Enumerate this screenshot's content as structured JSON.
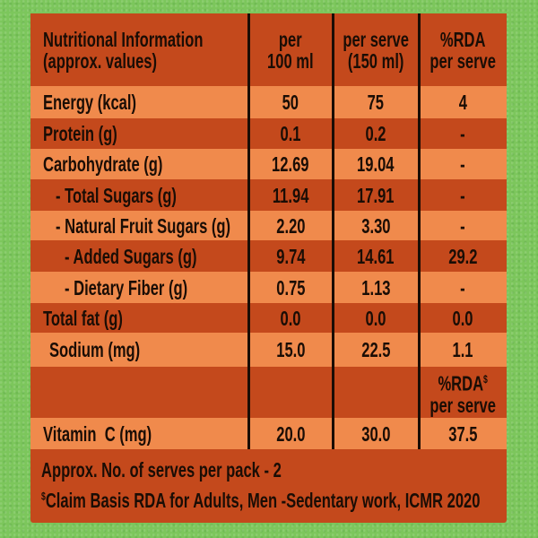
{
  "header": {
    "col1": [
      "Nutritional Information",
      "(approx. values)"
    ],
    "col2": [
      "per",
      "100 ml"
    ],
    "col3": [
      "per serve",
      "(150 ml)"
    ],
    "col4": [
      "%RDA",
      "per serve"
    ]
  },
  "rows": [
    {
      "label": "Energy (kcal)",
      "per100": "50",
      "perServe": "75",
      "rda": "4"
    },
    {
      "label": "Protein (g)",
      "per100": "0.1",
      "perServe": "0.2",
      "rda": "-"
    },
    {
      "label": "Carbohydrate (g)",
      "per100": "12.69",
      "perServe": "19.04",
      "rda": "-"
    },
    {
      "label": "- Total Sugars (g)",
      "per100": "11.94",
      "perServe": "17.91",
      "rda": "-"
    },
    {
      "label": "- Natural Fruit Sugars (g)",
      "per100": "2.20",
      "perServe": "3.30",
      "rda": "-"
    },
    {
      "label": "- Added Sugars (g)",
      "per100": "9.74",
      "perServe": "14.61",
      "rda": "29.2"
    },
    {
      "label": "- Dietary Fiber (g)",
      "per100": "0.75",
      "perServe": "1.13",
      "rda": "-"
    },
    {
      "label": "Total fat (g)",
      "per100": "0.0",
      "perServe": "0.0",
      "rda": "0.0"
    },
    {
      "label": "Sodium (mg)",
      "per100": "15.0",
      "perServe": "22.5",
      "rda": "1.1"
    }
  ],
  "rda_subheader": {
    "line1": "%RDA",
    "sup": "$",
    "line2": "per serve"
  },
  "vitamin": {
    "label": "Vitamin  C (mg)",
    "per100": "20.0",
    "perServe": "30.0",
    "rda": "37.5"
  },
  "footer": {
    "serves": "Approx. No. of serves per pack - 2",
    "claim_sup": "$",
    "claim": "Claim Basis RDA for Adults, Men -Sedentary work, ICMR 2020"
  },
  "colors": {
    "dark": "#c4491c",
    "light": "#f08a4c",
    "background": "#7cc65c"
  }
}
